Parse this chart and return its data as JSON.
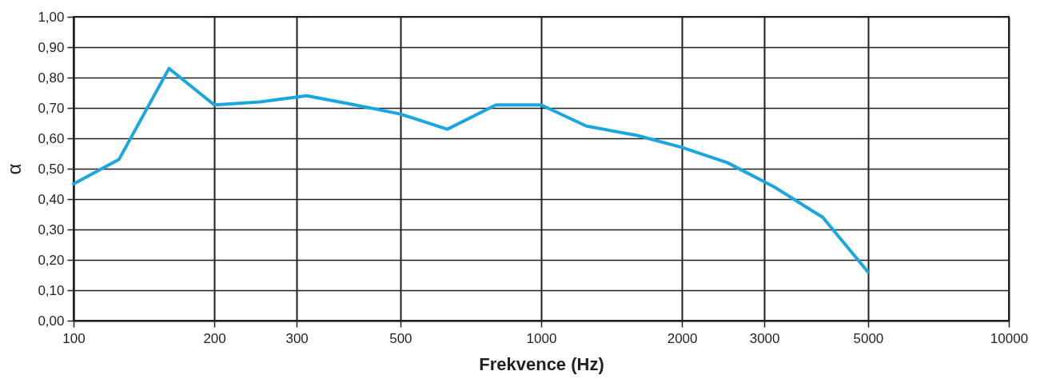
{
  "chart_data": {
    "type": "line",
    "xlabel": "Frekvence (Hz)",
    "ylabel": "α",
    "x": [
      100,
      125,
      160,
      200,
      250,
      315,
      400,
      500,
      630,
      800,
      1000,
      1250,
      1600,
      2000,
      2500,
      3150,
      4000,
      5000
    ],
    "series": [
      {
        "color": "#1aa7e0",
        "values": [
          0.45,
          0.53,
          0.83,
          0.71,
          0.72,
          0.74,
          0.71,
          0.68,
          0.63,
          0.71,
          0.71,
          0.64,
          0.61,
          0.57,
          0.52,
          0.44,
          0.34,
          0.16
        ]
      }
    ],
    "log": "x",
    "xlim": [
      100,
      10000
    ],
    "xticks": [
      100,
      200,
      300,
      500,
      1000,
      2000,
      3000,
      5000,
      10000
    ],
    "ylim": [
      0,
      1
    ],
    "yticks": [
      {
        "value": 0,
        "label": "0,00"
      },
      {
        "value": 0.1,
        "label": "0,10"
      },
      {
        "value": 0.2,
        "label": "0,20"
      },
      {
        "value": 0.3,
        "label": "0,30"
      },
      {
        "value": 0.4,
        "label": "0,40"
      },
      {
        "value": 0.5,
        "label": "0,50"
      },
      {
        "value": 0.6,
        "label": "0,60"
      },
      {
        "value": 0.7,
        "label": "0,70"
      },
      {
        "value": 0.8,
        "label": "0,80"
      },
      {
        "value": 0.9,
        "label": "0,90"
      },
      {
        "value": 1,
        "label": "1,00"
      }
    ],
    "grid": true,
    "marker": "none",
    "line_style": "solid"
  }
}
